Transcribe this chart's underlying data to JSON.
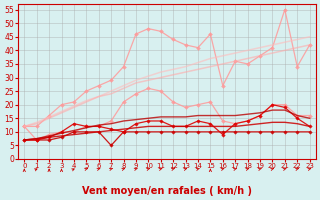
{
  "x": [
    0,
    1,
    2,
    3,
    4,
    5,
    6,
    7,
    8,
    9,
    10,
    11,
    12,
    13,
    14,
    15,
    16,
    17,
    18,
    19,
    20,
    21,
    22,
    23
  ],
  "series": [
    {
      "name": "line1_rafales_high",
      "color": "#ff9999",
      "alpha": 0.85,
      "lw": 0.9,
      "marker": "D",
      "ms": 2.0,
      "y": [
        12,
        12,
        16,
        20,
        21,
        25,
        27,
        29,
        34,
        46,
        48,
        47,
        44,
        42,
        41,
        46,
        27,
        36,
        35,
        38,
        41,
        55,
        34,
        42
      ]
    },
    {
      "name": "line2_rafales_low",
      "color": "#ff9999",
      "alpha": 0.85,
      "lw": 0.9,
      "marker": "D",
      "ms": 2.0,
      "y": [
        12,
        7,
        9,
        10,
        10,
        12,
        12,
        14,
        21,
        24,
        26,
        25,
        21,
        19,
        20,
        21,
        14,
        13,
        14,
        16,
        20,
        20,
        16,
        16
      ]
    },
    {
      "name": "line3_trend_upper2",
      "color": "#ffbbbb",
      "alpha": 0.6,
      "lw": 1.1,
      "marker": "",
      "ms": 0,
      "y": [
        12,
        13.5,
        15.5,
        17.5,
        19.5,
        21.5,
        23,
        25,
        27,
        29,
        30.5,
        32,
        33,
        34,
        35.5,
        37,
        38,
        39,
        40,
        41,
        42,
        43,
        44,
        45
      ]
    },
    {
      "name": "line4_trend_upper1",
      "color": "#ffaaaa",
      "alpha": 0.6,
      "lw": 1.1,
      "marker": "",
      "ms": 0,
      "y": [
        12,
        13,
        15,
        17,
        19,
        21,
        23,
        24,
        26,
        28,
        29,
        30,
        31,
        32,
        33,
        34,
        35,
        36,
        37,
        38,
        39,
        40,
        41,
        42
      ]
    },
    {
      "name": "line5_moyen_flat",
      "color": "#cc0000",
      "alpha": 0.9,
      "lw": 0.9,
      "marker": "D",
      "ms": 1.8,
      "y": [
        7,
        7,
        7,
        8,
        10,
        10,
        10,
        5,
        10,
        10,
        10,
        10,
        10,
        10,
        10,
        10,
        10,
        10,
        10,
        10,
        10,
        10,
        10,
        10
      ]
    },
    {
      "name": "line6_moyen_var",
      "color": "#dd0000",
      "alpha": 0.9,
      "lw": 0.9,
      "marker": "D",
      "ms": 1.8,
      "y": [
        7,
        7,
        8,
        10,
        13,
        12,
        12,
        11,
        10,
        13,
        14,
        14,
        12,
        12,
        14,
        13,
        9,
        13,
        14,
        16,
        20,
        19,
        15,
        12
      ]
    },
    {
      "name": "line7_trend_lower",
      "color": "#cc0000",
      "alpha": 0.85,
      "lw": 1.0,
      "marker": "",
      "ms": 0,
      "y": [
        7,
        7.5,
        8,
        8.5,
        9,
        9.5,
        10,
        10.5,
        11,
        11.5,
        12,
        12,
        12,
        12,
        12,
        12,
        12,
        12,
        12.5,
        13,
        13.5,
        13.5,
        13,
        12
      ]
    },
    {
      "name": "line8_trend_upper",
      "color": "#bb0000",
      "alpha": 0.8,
      "lw": 1.0,
      "marker": "",
      "ms": 0,
      "y": [
        7,
        7.5,
        8.5,
        9.5,
        10.5,
        11.5,
        12.5,
        13,
        14,
        14.5,
        15,
        15.5,
        15.5,
        15.5,
        16,
        16,
        16,
        16,
        16.5,
        17,
        18,
        18,
        16,
        15
      ]
    }
  ],
  "xlabel": "Vent moyen/en rafales ( km/h )",
  "xlim": [
    -0.5,
    23.5
  ],
  "ylim": [
    0,
    57
  ],
  "yticks": [
    0,
    5,
    10,
    15,
    20,
    25,
    30,
    35,
    40,
    45,
    50,
    55
  ],
  "xticks": [
    0,
    1,
    2,
    3,
    4,
    5,
    6,
    7,
    8,
    9,
    10,
    11,
    12,
    13,
    14,
    15,
    16,
    17,
    18,
    19,
    20,
    21,
    22,
    23
  ],
  "bg_color": "#d8f0f0",
  "grid_color": "#aaaaaa",
  "arrow_color": "#cc0000",
  "text_color": "#cc0000",
  "xlabel_fontsize": 7,
  "tick_fontsize": 5.5
}
